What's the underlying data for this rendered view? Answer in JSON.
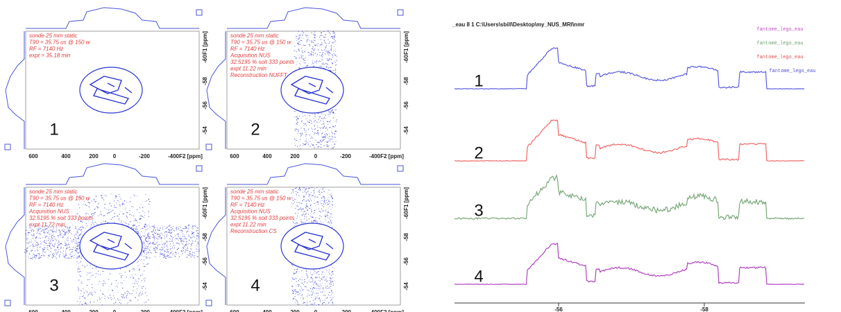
{
  "left_panels": [
    {
      "label": "1",
      "annotations": [
        "sonde 25 mm static",
        "T90 = 35.75 us @ 150 w",
        "RF = 7140 Hz",
        "expt = 35.18 min"
      ]
    },
    {
      "label": "2",
      "annotations": [
        "sonde 25 mm static",
        "T90 = 35.75 us @ 150 w",
        "RF = 7140 Hz",
        "Acquisition NUS",
        "32.5195 % soit 333 points",
        "expt 11.22 min",
        "Reconstruction NUFFT"
      ]
    },
    {
      "label": "3",
      "annotations": [
        "sonde 25 mm static",
        "T90 = 35.75 us @ 150 w",
        "RF = 7140 Hz",
        "Acquisition NUS",
        "32.5195 % soit 333 points",
        "expt 11.72 min"
      ]
    },
    {
      "label": "4",
      "annotations": [
        "sonde 25 mm static",
        "T90 = 35.75 us @ 150 w",
        "RF = 7140 Hz",
        "Acquisition NUS",
        "32.5195 % soit 333 points",
        "expt 11.22 min",
        "Reconstruction CS"
      ]
    }
  ],
  "x_axis": {
    "ticks": [
      "600",
      "400",
      "200",
      "0",
      "-200",
      "-400"
    ],
    "label": "F2 [ppm]"
  },
  "y_axis": {
    "ticks": [
      "-60",
      "-58",
      "-56",
      "-54"
    ],
    "label": "F1 [ppm]"
  },
  "right_panel": {
    "header": "_eau 8 1 C:\\Users\\sbill\\Desktop\\my_NUS_MRI\\nmr",
    "legend": [
      "fantome_lego_eau",
      "fantome_lego_eau",
      "fantome_lego_eau",
      "fantome_lego_eau"
    ],
    "trace_labels": [
      "1",
      "2",
      "3",
      "4"
    ],
    "x_ticks": [
      "-56",
      "-58"
    ]
  }
}
